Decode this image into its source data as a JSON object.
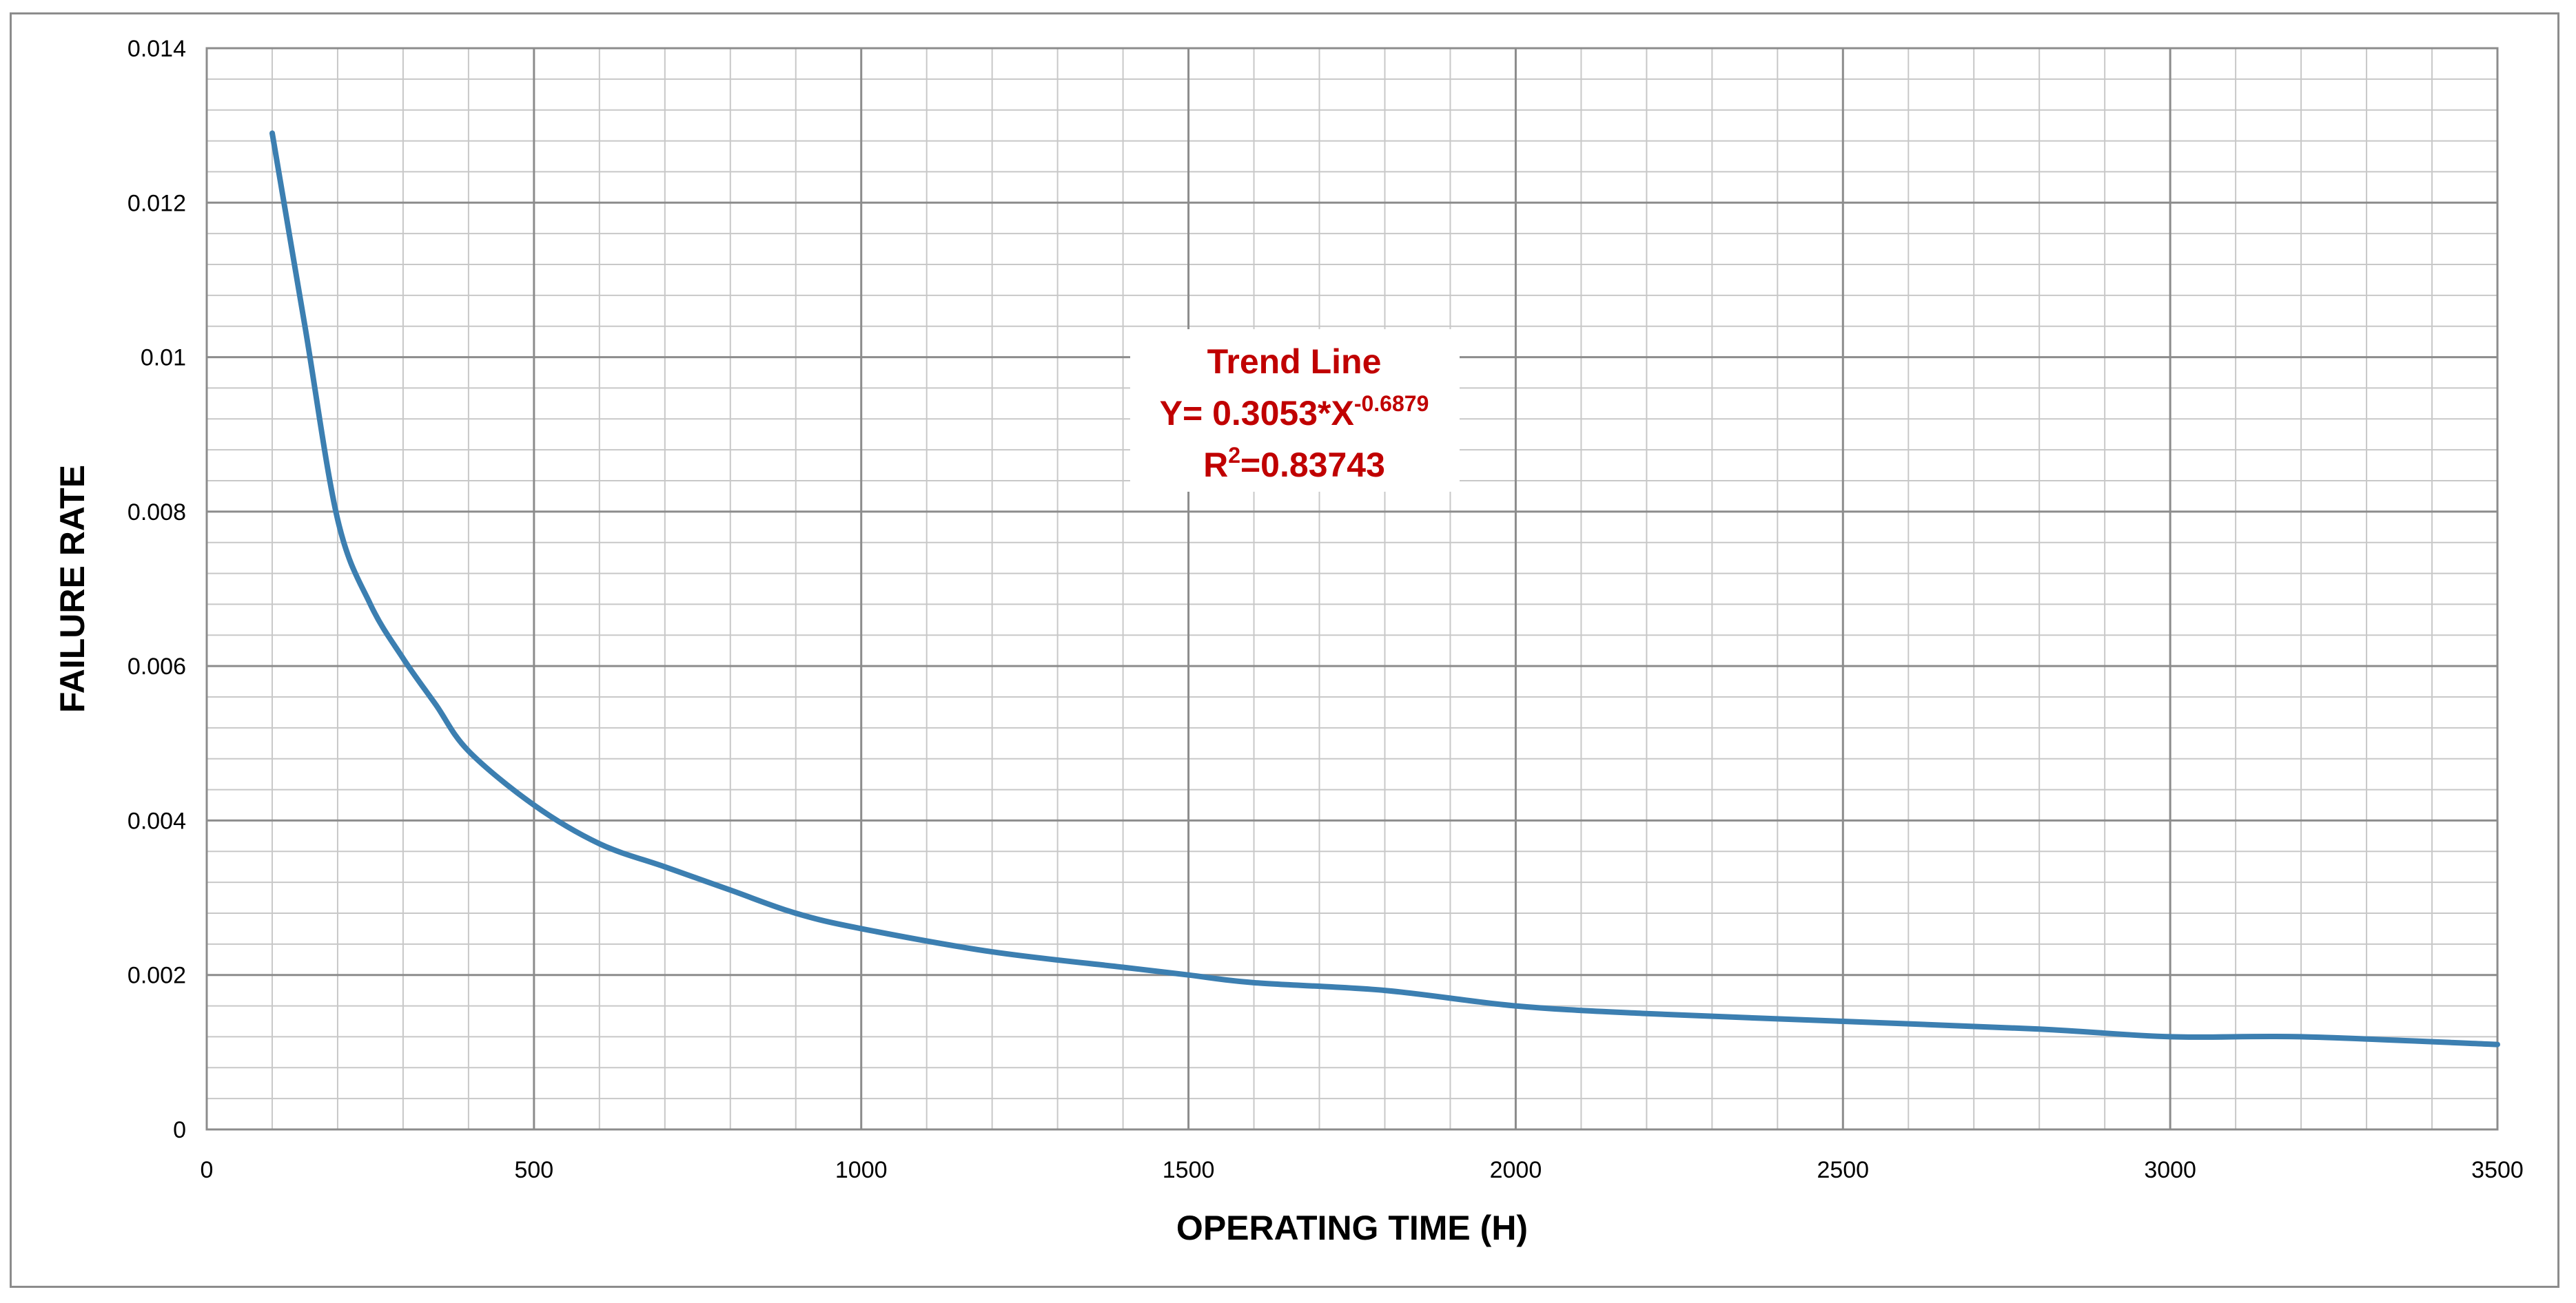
{
  "chart_data": {
    "type": "line",
    "title": "",
    "xlabel": "OPERATING TIME (H)",
    "ylabel": "FAILURE RATE",
    "xlim": [
      0,
      3500
    ],
    "ylim": [
      0,
      0.014
    ],
    "x_ticks": [
      0,
      500,
      1000,
      1500,
      2000,
      2500,
      3000,
      3500
    ],
    "x_tick_labels": [
      "0",
      "500",
      "1000",
      "1500",
      "2000",
      "2500",
      "3000",
      "3500"
    ],
    "y_ticks": [
      0,
      0.002,
      0.004,
      0.006,
      0.008,
      0.01,
      0.012,
      0.014
    ],
    "y_tick_labels": [
      "0",
      "0.002",
      "0.004",
      "0.006",
      "0.008",
      "0.01",
      "0.012",
      "0.014"
    ],
    "x_minor_step": 100,
    "y_minor_step": 0.0004,
    "grid": true,
    "series": [
      {
        "color": "#3c7fb1",
        "x": [
          100,
          150,
          200,
          250,
          300,
          350,
          400,
          500,
          600,
          700,
          800,
          900,
          1000,
          1200,
          1400,
          1500,
          1600,
          1800,
          2000,
          2200,
          2500,
          2800,
          3000,
          3200,
          3500
        ],
        "y": [
          0.0129,
          0.0104,
          0.0079,
          0.0068,
          0.0061,
          0.0055,
          0.0049,
          0.0042,
          0.0037,
          0.0034,
          0.0031,
          0.0028,
          0.0026,
          0.0023,
          0.0021,
          0.002,
          0.0019,
          0.0018,
          0.0016,
          0.0015,
          0.0014,
          0.0013,
          0.0012,
          0.0012,
          0.0011
        ]
      }
    ],
    "annotation": {
      "line1": "Trend Line",
      "eq_prefix": "Y= 0.3053*X",
      "eq_exponent": "-0.6879",
      "r2_prefix": "R",
      "r2_exponent": "2",
      "r2_suffix": "=0.83743",
      "color": "#c00000"
    }
  }
}
